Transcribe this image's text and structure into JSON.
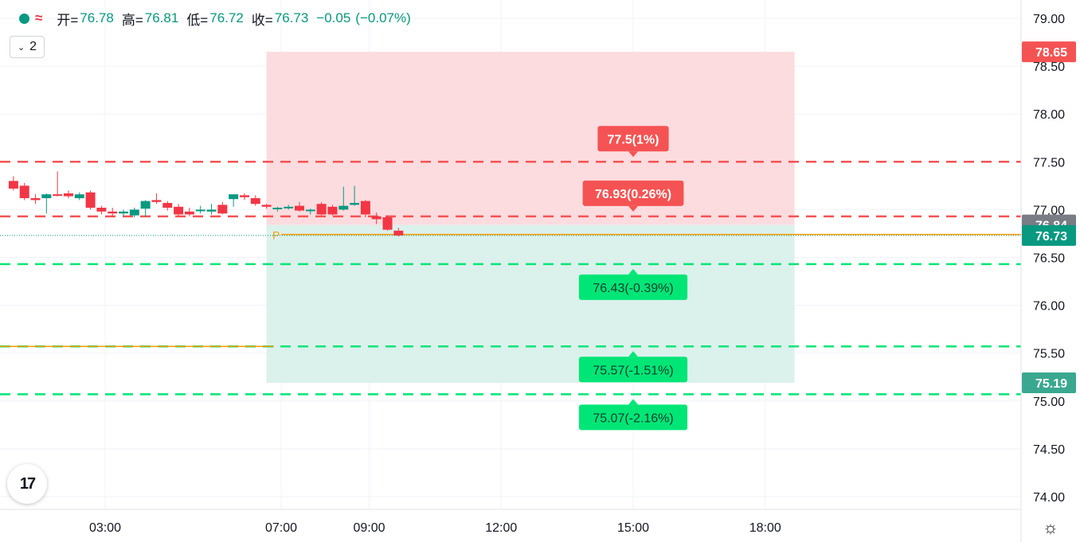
{
  "legend": {
    "open_label": "开=",
    "open": "76.78",
    "high_label": "高=",
    "high": "76.81",
    "low_label": "低=",
    "low": "76.72",
    "close_label": "收=",
    "close": "76.73",
    "change": "−0.05",
    "change_pct": "(−0.07%)",
    "wave_icon": "≈"
  },
  "collapse": {
    "chevron": "⌄",
    "count": "2"
  },
  "logo_text": "17",
  "settings_icon": "☼",
  "colors": {
    "up": "#089981",
    "down": "#f23645",
    "profit_zone": "#dbf1ec",
    "loss_zone": "#fcdcdf",
    "target_line": "#00e676",
    "stop_line": "#f55353",
    "entry_line": "#ff9800",
    "last_price": "#089981",
    "gray_tag": "#7a7c85"
  },
  "chart_data": {
    "type": "candlestick",
    "y_axis": {
      "min": 74.0,
      "max": 79.0,
      "ticks": [
        "74.00",
        "74.50",
        "75.00",
        "75.50",
        "76.00",
        "76.50",
        "77.00",
        "77.50",
        "78.00",
        "78.50",
        "79.00"
      ]
    },
    "x_axis": {
      "ticks": [
        "03:00",
        "07:00",
        "09:00",
        "12:00",
        "15:00",
        "18:00"
      ]
    },
    "price_tags": [
      {
        "value": 78.65,
        "label": "78.65",
        "kind": "stop"
      },
      {
        "value": 76.84,
        "label": "76.84",
        "kind": "gray"
      },
      {
        "value": 76.73,
        "label": "76.73",
        "kind": "last"
      },
      {
        "value": 75.19,
        "label": "75.19",
        "kind": "target"
      }
    ],
    "entry_price": 76.84,
    "horizontal_line": 75.57,
    "entry_marker": "P",
    "last_price": 76.73,
    "levels": [
      {
        "value": 77.5,
        "label": "77.5(1%)",
        "kind": "up"
      },
      {
        "value": 76.93,
        "label": "76.93(0.26%)",
        "kind": "up"
      },
      {
        "value": 76.43,
        "label": "76.43(-0.39%)",
        "kind": "down"
      },
      {
        "value": 75.57,
        "label": "75.57(-1.51%)",
        "kind": "down"
      },
      {
        "value": 75.07,
        "label": "75.07(-2.16%)",
        "kind": "down"
      }
    ],
    "candles": [
      {
        "time": "00:55",
        "o": 77.3,
        "h": 77.35,
        "l": 77.2,
        "c": 77.22
      },
      {
        "time": "01:10",
        "o": 77.25,
        "h": 77.28,
        "l": 77.1,
        "c": 77.12
      },
      {
        "time": "01:25",
        "o": 77.12,
        "h": 77.16,
        "l": 77.06,
        "c": 77.1
      },
      {
        "time": "01:40",
        "o": 77.12,
        "h": 77.17,
        "l": 76.96,
        "c": 77.16
      },
      {
        "time": "01:55",
        "o": 77.16,
        "h": 77.4,
        "l": 77.14,
        "c": 77.15
      },
      {
        "time": "02:10",
        "o": 77.17,
        "h": 77.2,
        "l": 77.12,
        "c": 77.14
      },
      {
        "time": "02:25",
        "o": 77.12,
        "h": 77.18,
        "l": 77.1,
        "c": 77.16
      },
      {
        "time": "02:40",
        "o": 77.18,
        "h": 77.2,
        "l": 77.0,
        "c": 77.02
      },
      {
        "time": "02:55",
        "o": 77.02,
        "h": 77.04,
        "l": 76.95,
        "c": 76.98
      },
      {
        "time": "03:10",
        "o": 76.98,
        "h": 77.02,
        "l": 76.92,
        "c": 76.96
      },
      {
        "time": "03:25",
        "o": 76.96,
        "h": 77.0,
        "l": 76.93,
        "c": 76.98
      },
      {
        "time": "03:40",
        "o": 76.94,
        "h": 77.02,
        "l": 76.92,
        "c": 77.0
      },
      {
        "time": "03:55",
        "o": 77.01,
        "h": 77.1,
        "l": 76.93,
        "c": 77.09
      },
      {
        "time": "04:10",
        "o": 77.1,
        "h": 77.17,
        "l": 77.06,
        "c": 77.08
      },
      {
        "time": "04:25",
        "o": 77.07,
        "h": 77.09,
        "l": 76.99,
        "c": 77.02
      },
      {
        "time": "04:40",
        "o": 77.03,
        "h": 77.06,
        "l": 76.93,
        "c": 76.95
      },
      {
        "time": "04:55",
        "o": 76.98,
        "h": 77.02,
        "l": 76.93,
        "c": 76.95
      },
      {
        "time": "05:10",
        "o": 76.99,
        "h": 77.04,
        "l": 76.96,
        "c": 77.0
      },
      {
        "time": "05:25",
        "o": 76.98,
        "h": 77.06,
        "l": 76.95,
        "c": 77.0
      },
      {
        "time": "05:40",
        "o": 77.05,
        "h": 77.08,
        "l": 76.95,
        "c": 76.96
      },
      {
        "time": "05:55",
        "o": 77.11,
        "h": 77.16,
        "l": 77.03,
        "c": 77.16
      },
      {
        "time": "06:10",
        "o": 77.15,
        "h": 77.17,
        "l": 77.1,
        "c": 77.13
      },
      {
        "time": "06:25",
        "o": 77.12,
        "h": 77.15,
        "l": 77.04,
        "c": 77.06
      },
      {
        "time": "06:40",
        "o": 77.05,
        "h": 77.06,
        "l": 77.01,
        "c": 77.03
      },
      {
        "time": "06:55",
        "o": 77.01,
        "h": 77.03,
        "l": 76.98,
        "c": 77.02
      },
      {
        "time": "07:10",
        "o": 77.02,
        "h": 77.05,
        "l": 77.0,
        "c": 77.03
      },
      {
        "time": "07:25",
        "o": 77.04,
        "h": 77.08,
        "l": 76.98,
        "c": 76.99
      },
      {
        "time": "07:40",
        "o": 76.99,
        "h": 77.01,
        "l": 76.95,
        "c": 77.0
      },
      {
        "time": "07:55",
        "o": 77.06,
        "h": 77.08,
        "l": 76.94,
        "c": 76.95
      },
      {
        "time": "08:10",
        "o": 77.03,
        "h": 77.05,
        "l": 76.94,
        "c": 76.95
      },
      {
        "time": "08:25",
        "o": 77.0,
        "h": 77.24,
        "l": 76.99,
        "c": 77.04
      },
      {
        "time": "08:40",
        "o": 77.05,
        "h": 77.25,
        "l": 77.04,
        "c": 77.07
      },
      {
        "time": "08:55",
        "o": 77.09,
        "h": 77.1,
        "l": 76.92,
        "c": 76.95
      },
      {
        "time": "09:10",
        "o": 76.93,
        "h": 76.97,
        "l": 76.85,
        "c": 76.9
      },
      {
        "time": "09:25",
        "o": 76.92,
        "h": 76.94,
        "l": 76.78,
        "c": 76.79
      },
      {
        "time": "09:40",
        "o": 76.78,
        "h": 76.81,
        "l": 76.72,
        "c": 76.73
      }
    ]
  }
}
